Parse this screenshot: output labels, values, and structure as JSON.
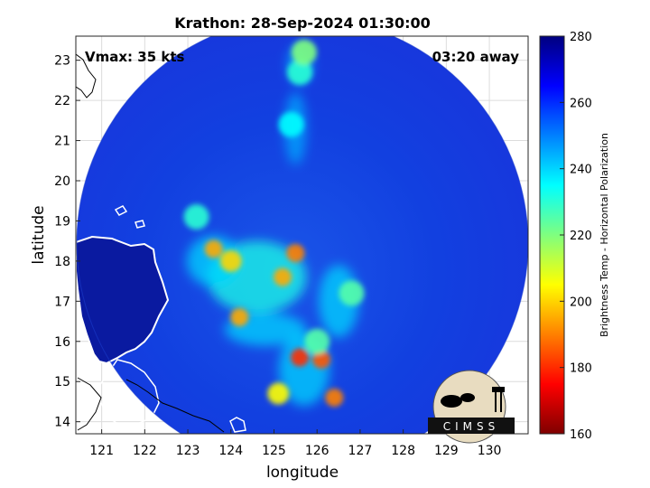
{
  "chart_data": {
    "type": "heatmap",
    "title": "Krathon: 28-Sep-2024 01:30:00",
    "annotations": {
      "vmax": "Vmax: 35 kts",
      "time_away": "03:20 away"
    },
    "xlabel": "longitude",
    "ylabel": "latitude",
    "xlim": [
      120.4,
      130.9
    ],
    "ylim": [
      13.7,
      23.6
    ],
    "xticks": [
      121,
      122,
      123,
      124,
      125,
      126,
      127,
      128,
      129,
      130
    ],
    "yticks": [
      14,
      15,
      16,
      17,
      18,
      19,
      20,
      21,
      22,
      23
    ],
    "grid": true,
    "colorbar": {
      "label": "Brightness Temp - Horizontal Polarization",
      "range": [
        160,
        280
      ],
      "ticks": [
        160,
        180,
        200,
        220,
        240,
        260,
        280
      ],
      "colors": [
        "#7f0000",
        "#ff0000",
        "#ff8000",
        "#ffff00",
        "#7fff7f",
        "#00ffff",
        "#0080ff",
        "#0000ff",
        "#00007f"
      ]
    },
    "swath": {
      "center": [
        125.5,
        18.7
      ],
      "background_value": 262
    },
    "cold_cells": [
      {
        "lon": 125.5,
        "lat": 18.2,
        "value": 190
      },
      {
        "lon": 125.2,
        "lat": 17.6,
        "value": 195
      },
      {
        "lon": 123.6,
        "lat": 18.3,
        "value": 195
      },
      {
        "lon": 124.0,
        "lat": 18.0,
        "value": 200
      },
      {
        "lon": 124.2,
        "lat": 16.6,
        "value": 195
      },
      {
        "lon": 125.6,
        "lat": 15.6,
        "value": 180
      },
      {
        "lon": 126.1,
        "lat": 15.55,
        "value": 185
      },
      {
        "lon": 126.4,
        "lat": 14.6,
        "value": 190
      },
      {
        "lon": 125.1,
        "lat": 14.7,
        "value": 205
      },
      {
        "lon": 126.0,
        "lat": 16.0,
        "value": 225
      },
      {
        "lon": 126.8,
        "lat": 17.2,
        "value": 225
      },
      {
        "lon": 123.2,
        "lat": 19.1,
        "value": 230
      },
      {
        "lon": 125.4,
        "lat": 21.4,
        "value": 235
      },
      {
        "lon": 125.6,
        "lat": 22.7,
        "value": 230
      },
      {
        "lon": 125.7,
        "lat": 23.2,
        "value": 220
      }
    ],
    "land_value": 275
  },
  "logo": {
    "text": "CIMSS"
  }
}
